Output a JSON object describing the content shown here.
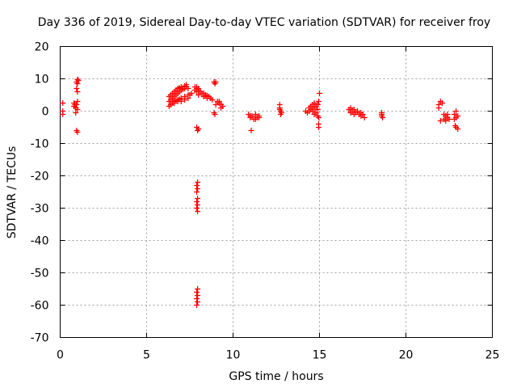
{
  "chart_data": {
    "type": "scatter",
    "title": "Day 336 of 2019, Sidereal Day-to-day VTEC variation (SDTVAR) for receiver froy",
    "xlabel": "GPS time / hours",
    "ylabel": "SDTVAR / TECUs",
    "xlim": [
      0,
      25
    ],
    "ylim": [
      -70,
      20
    ],
    "xticks": [
      0,
      5,
      10,
      15,
      20,
      25
    ],
    "yticks": [
      -70,
      -60,
      -50,
      -40,
      -30,
      -20,
      -10,
      0,
      10,
      20
    ],
    "xtick_labels": [
      "0",
      "5",
      "10",
      "15",
      "20",
      "25"
    ],
    "ytick_labels": [
      "-70",
      "-60",
      "-50",
      "-40",
      "-30",
      "-20",
      "-10",
      "0",
      "10",
      "20"
    ],
    "grid": true,
    "marker": "plus",
    "color": "#ff0000",
    "series": [
      {
        "name": "SDTVAR",
        "points": [
          [
            0.15,
            2.5
          ],
          [
            0.15,
            0.0
          ],
          [
            0.15,
            -1.0
          ],
          [
            0.8,
            2.5
          ],
          [
            0.8,
            1.5
          ],
          [
            0.85,
            2.0
          ],
          [
            0.9,
            1.0
          ],
          [
            0.9,
            -0.5
          ],
          [
            0.95,
            2.0
          ],
          [
            1.0,
            3.0
          ],
          [
            1.0,
            0.5
          ],
          [
            0.95,
            9.0
          ],
          [
            1.0,
            8.5
          ],
          [
            1.0,
            9.8
          ],
          [
            1.05,
            9.5
          ],
          [
            0.95,
            7.0
          ],
          [
            1.0,
            6.0
          ],
          [
            0.95,
            -6.0
          ],
          [
            1.0,
            -6.5
          ],
          [
            6.3,
            1.5
          ],
          [
            6.4,
            2.0
          ],
          [
            6.5,
            2.5
          ],
          [
            6.6,
            3.0
          ],
          [
            6.7,
            3.2
          ],
          [
            6.8,
            3.5
          ],
          [
            6.9,
            3.7
          ],
          [
            7.0,
            4.0
          ],
          [
            7.2,
            4.5
          ],
          [
            7.4,
            5.0
          ],
          [
            6.3,
            4.5
          ],
          [
            6.4,
            5.0
          ],
          [
            6.5,
            5.5
          ],
          [
            6.6,
            6.0
          ],
          [
            6.7,
            6.5
          ],
          [
            6.8,
            7.0
          ],
          [
            6.9,
            7.2
          ],
          [
            7.0,
            7.5
          ],
          [
            7.2,
            7.8
          ],
          [
            7.3,
            8.2
          ],
          [
            6.3,
            3.0
          ],
          [
            6.4,
            3.5
          ],
          [
            6.5,
            4.0
          ],
          [
            6.6,
            4.5
          ],
          [
            6.7,
            5.0
          ],
          [
            6.8,
            5.5
          ],
          [
            6.9,
            6.0
          ],
          [
            7.0,
            6.5
          ],
          [
            7.1,
            6.8
          ],
          [
            7.2,
            7.0
          ],
          [
            7.3,
            7.5
          ],
          [
            7.4,
            7.0
          ],
          [
            6.4,
            2.0
          ],
          [
            6.6,
            2.5
          ],
          [
            6.8,
            3.0
          ],
          [
            7.0,
            3.0
          ],
          [
            7.2,
            3.5
          ],
          [
            7.4,
            4.0
          ],
          [
            7.5,
            5.0
          ],
          [
            7.6,
            5.5
          ],
          [
            7.8,
            7.5
          ],
          [
            7.9,
            7.0
          ],
          [
            8.0,
            7.0
          ],
          [
            8.0,
            6.5
          ],
          [
            8.1,
            6.0
          ],
          [
            8.2,
            5.5
          ],
          [
            8.3,
            5.5
          ],
          [
            8.4,
            5.0
          ],
          [
            8.5,
            4.8
          ],
          [
            8.6,
            4.5
          ],
          [
            8.7,
            4.0
          ],
          [
            8.8,
            3.5
          ],
          [
            8.3,
            4.5
          ],
          [
            8.5,
            4.0
          ],
          [
            7.8,
            6.5
          ],
          [
            7.9,
            6.0
          ],
          [
            8.0,
            5.0
          ],
          [
            7.9,
            7.5
          ],
          [
            8.9,
            9.0
          ],
          [
            9.0,
            9.0
          ],
          [
            8.95,
            8.5
          ],
          [
            9.1,
            3.0
          ],
          [
            9.2,
            2.5
          ],
          [
            9.3,
            2.0
          ],
          [
            9.4,
            1.5
          ],
          [
            9.3,
            1.0
          ],
          [
            9.2,
            3.0
          ],
          [
            9.0,
            2.0
          ],
          [
            8.9,
            -0.5
          ],
          [
            8.95,
            -1.0
          ],
          [
            7.9,
            -5.0
          ],
          [
            8.0,
            -5.5
          ],
          [
            7.95,
            -6.0
          ],
          [
            7.95,
            -22.0
          ],
          [
            7.9,
            -23.0
          ],
          [
            7.95,
            -24.0
          ],
          [
            7.9,
            -25.0
          ],
          [
            7.95,
            -27.0
          ],
          [
            7.9,
            -28.0
          ],
          [
            7.95,
            -29.0
          ],
          [
            7.9,
            -30.0
          ],
          [
            7.95,
            -31.0
          ],
          [
            7.95,
            -55.0
          ],
          [
            7.9,
            -56.0
          ],
          [
            7.95,
            -57.0
          ],
          [
            7.9,
            -58.0
          ],
          [
            7.95,
            -59.0
          ],
          [
            7.9,
            -60.0
          ],
          [
            10.9,
            -1.0
          ],
          [
            11.0,
            -2.0
          ],
          [
            11.1,
            -1.5
          ],
          [
            11.2,
            -2.5
          ],
          [
            11.3,
            -1.0
          ],
          [
            11.4,
            -2.0
          ],
          [
            11.5,
            -1.5
          ],
          [
            11.0,
            -1.5
          ],
          [
            11.3,
            -2.5
          ],
          [
            11.5,
            -2.0
          ],
          [
            11.05,
            -6.0
          ],
          [
            12.7,
            2.0
          ],
          [
            12.7,
            0.5
          ],
          [
            12.75,
            0.0
          ],
          [
            12.8,
            -0.5
          ],
          [
            12.75,
            -1.0
          ],
          [
            12.7,
            1.0
          ],
          [
            14.2,
            0.0
          ],
          [
            14.3,
            -0.5
          ],
          [
            14.4,
            0.0
          ],
          [
            14.5,
            0.5
          ],
          [
            14.6,
            0.0
          ],
          [
            14.7,
            1.0
          ],
          [
            14.8,
            1.5
          ],
          [
            14.9,
            2.0
          ],
          [
            14.95,
            3.0
          ],
          [
            14.9,
            0.5
          ],
          [
            14.8,
            -0.5
          ],
          [
            14.7,
            -1.0
          ],
          [
            14.6,
            2.0
          ],
          [
            14.7,
            2.5
          ],
          [
            14.5,
            1.5
          ],
          [
            14.4,
            1.0
          ],
          [
            14.9,
            -1.5
          ],
          [
            14.95,
            -2.0
          ],
          [
            14.95,
            -4.0
          ],
          [
            14.95,
            -5.0
          ],
          [
            15.0,
            5.5
          ],
          [
            16.7,
            0.5
          ],
          [
            16.8,
            1.0
          ],
          [
            16.9,
            0.0
          ],
          [
            17.0,
            0.5
          ],
          [
            17.1,
            -0.5
          ],
          [
            17.2,
            0.0
          ],
          [
            17.3,
            -1.0
          ],
          [
            17.4,
            -1.5
          ],
          [
            17.5,
            -1.0
          ],
          [
            17.6,
            -2.0
          ],
          [
            16.8,
            -0.5
          ],
          [
            17.0,
            -1.0
          ],
          [
            17.4,
            -0.5
          ],
          [
            18.6,
            -0.5
          ],
          [
            18.6,
            -1.5
          ],
          [
            18.65,
            -2.0
          ],
          [
            18.6,
            -1.0
          ],
          [
            21.9,
            2.0
          ],
          [
            22.0,
            3.0
          ],
          [
            21.9,
            1.0
          ],
          [
            22.1,
            2.5
          ],
          [
            22.0,
            -3.0
          ],
          [
            22.2,
            -1.0
          ],
          [
            22.3,
            -1.5
          ],
          [
            22.4,
            -2.0
          ],
          [
            22.5,
            -2.5
          ],
          [
            22.3,
            -3.0
          ],
          [
            22.4,
            -1.0
          ],
          [
            22.2,
            -2.5
          ],
          [
            22.8,
            -1.0
          ],
          [
            22.9,
            -2.0
          ],
          [
            23.0,
            -1.5
          ],
          [
            22.9,
            0.0
          ],
          [
            22.8,
            -2.5
          ],
          [
            22.85,
            -4.5
          ],
          [
            22.9,
            -5.0
          ],
          [
            23.0,
            -5.5
          ]
        ]
      }
    ]
  }
}
